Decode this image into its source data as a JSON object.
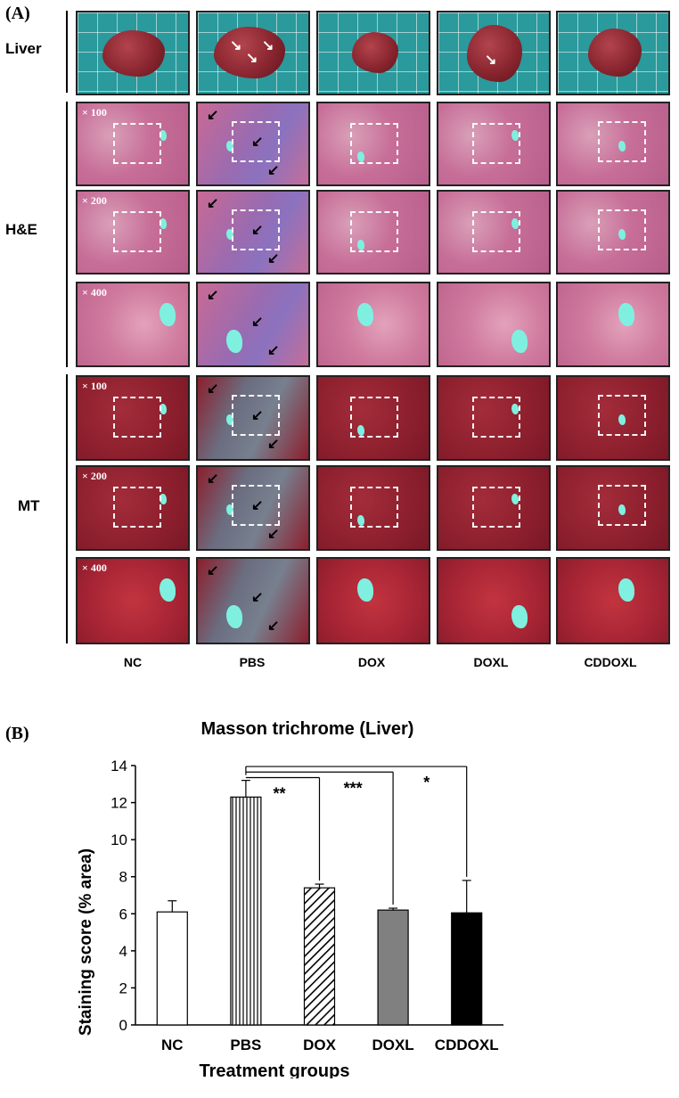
{
  "panel_a": {
    "label": "(A)",
    "rows": {
      "liver": "Liver",
      "he": "H&E",
      "mt": "MT"
    },
    "magnifications": [
      "× 100",
      "× 200",
      "× 400"
    ],
    "columns": [
      "NC",
      "PBS",
      "DOX",
      "DOXL",
      "CDDOXL"
    ]
  },
  "panel_b": {
    "label": "(B)"
  },
  "chart_data": {
    "type": "bar",
    "title": "Masson trichrome (Liver)",
    "xlabel": "Treatment groups",
    "ylabel": "Staining score (% area)",
    "categories": [
      "NC",
      "PBS",
      "DOX",
      "DOXL",
      "CDDOXL"
    ],
    "values": [
      6.1,
      12.3,
      7.4,
      6.2,
      6.05
    ],
    "errors": [
      0.6,
      0.9,
      0.2,
      0.1,
      1.75
    ],
    "ylim": [
      0,
      14
    ],
    "yticks": [
      0,
      2,
      4,
      6,
      8,
      10,
      12,
      14
    ],
    "fills": [
      "white",
      "vertical-lines",
      "diagonal-hatch",
      "gray",
      "black"
    ],
    "colors": {
      "gray": "#808080",
      "black": "#000000"
    },
    "significance": [
      {
        "from": "PBS",
        "to": "DOX",
        "label": "**"
      },
      {
        "from": "PBS",
        "to": "DOXL",
        "label": "***"
      },
      {
        "from": "PBS",
        "to": "CDDOXL",
        "label": "*"
      }
    ]
  }
}
